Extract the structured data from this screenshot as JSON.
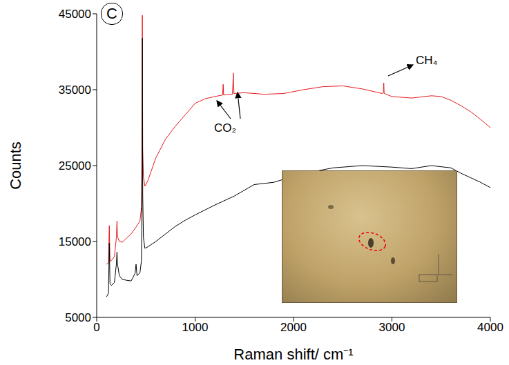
{
  "chart_data": {
    "type": "line",
    "panel_label": "C",
    "x_label": "Raman shift/ cm⁻¹",
    "y_label": "Counts",
    "xlim": [
      0,
      4000
    ],
    "xticks": [
      0,
      1000,
      2000,
      3000,
      4000
    ],
    "ylim": [
      5000,
      45000
    ],
    "yticks": [
      5000,
      15000,
      25000,
      35000,
      45000
    ],
    "grid": false,
    "annotations": [
      {
        "text": "CO₂"
      },
      {
        "text": "CH₄"
      }
    ],
    "series": [
      {
        "color": "#e8191c",
        "x": [
          100,
          120,
          128,
          135,
          150,
          180,
          200,
          206,
          212,
          230,
          260,
          300,
          350,
          400,
          440,
          455,
          460,
          464,
          468,
          475,
          490,
          520,
          600,
          700,
          800,
          900,
          1000,
          1100,
          1200,
          1280,
          1285,
          1290,
          1380,
          1388,
          1395,
          1500,
          1700,
          1900,
          2100,
          2300,
          2500,
          2700,
          2900,
          2913,
          2917,
          2921,
          3000,
          3200,
          3400,
          3500,
          3600,
          3700,
          3800,
          3900,
          4000
        ],
        "values": [
          12000,
          12200,
          17100,
          12400,
          12500,
          13000,
          15500,
          17700,
          15600,
          15000,
          14900,
          15400,
          16000,
          16900,
          17700,
          19500,
          26000,
          44800,
          27000,
          23500,
          22300,
          23000,
          26000,
          28500,
          30200,
          31700,
          33200,
          33800,
          34100,
          34300,
          35700,
          34300,
          34400,
          37200,
          34500,
          34600,
          34400,
          34500,
          35000,
          35400,
          35500,
          35100,
          34500,
          34600,
          35900,
          34500,
          34100,
          33900,
          34200,
          34100,
          33600,
          32900,
          32100,
          31100,
          30000
        ]
      },
      {
        "color": "#000000",
        "x": [
          100,
          120,
          128,
          135,
          150,
          180,
          200,
          206,
          212,
          230,
          260,
          300,
          350,
          390,
          400,
          410,
          440,
          455,
          460,
          464,
          468,
          475,
          490,
          520,
          600,
          700,
          800,
          900,
          1000,
          1200,
          1400,
          1600,
          1800,
          2000,
          2200,
          2400,
          2700,
          3000,
          3200,
          3400,
          3600,
          3700,
          3800,
          3900,
          4000
        ],
        "values": [
          7700,
          8200,
          14800,
          9500,
          9200,
          9600,
          12000,
          13600,
          12000,
          10500,
          10000,
          9900,
          9800,
          10800,
          12000,
          10500,
          10900,
          12500,
          20000,
          41800,
          21000,
          15500,
          14100,
          14300,
          15000,
          16000,
          17000,
          17800,
          18500,
          19800,
          21000,
          22500,
          22800,
          23600,
          24200,
          24700,
          25000,
          24800,
          24600,
          25000,
          24700,
          24000,
          23400,
          22800,
          22100
        ]
      }
    ]
  }
}
